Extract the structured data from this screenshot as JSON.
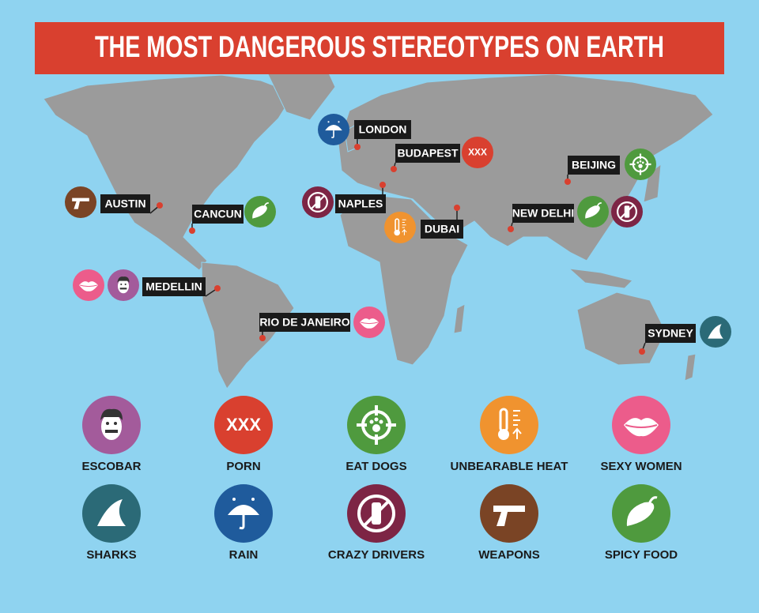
{
  "header": {
    "title": "THE MOST DANGEROUS STEREOTYPES ON EARTH"
  },
  "cities": [
    {
      "label": "LONDON"
    },
    {
      "label": "BUDAPEST"
    },
    {
      "label": "BEIJING"
    },
    {
      "label": "AUSTIN"
    },
    {
      "label": "CANCUN"
    },
    {
      "label": "NAPLES"
    },
    {
      "label": "DUBAI"
    },
    {
      "label": "NEW DELHI"
    },
    {
      "label": "MEDELLIN"
    },
    {
      "label": "RIO DE JANEIRO"
    },
    {
      "label": "SYDNEY"
    }
  ],
  "legend": [
    {
      "label": "ESCOBAR",
      "color": "#a35b9b"
    },
    {
      "label": "PORN",
      "color": "#d9402f",
      "icon_text": "XXX"
    },
    {
      "label": "EAT DOGS",
      "color": "#4f9a3e"
    },
    {
      "label": "UNBEARABLE HEAT",
      "color": "#f0932f"
    },
    {
      "label": "SEXY WOMEN",
      "color": "#ec5c8b"
    },
    {
      "label": "SHARKS",
      "color": "#2b6a77"
    },
    {
      "label": "RAIN",
      "color": "#1f5b9c"
    },
    {
      "label": "CRAZY DRIVERS",
      "color": "#7d2545"
    },
    {
      "label": "WEAPONS",
      "color": "#7a4425"
    },
    {
      "label": "SPICY FOOD",
      "color": "#4f9a3e"
    }
  ]
}
